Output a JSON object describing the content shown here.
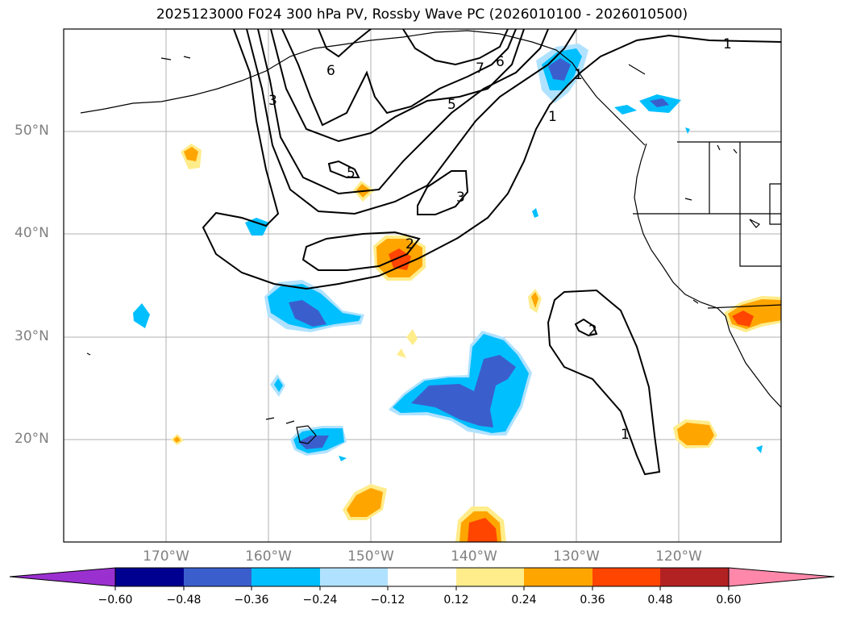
{
  "title": "2025123000 F024 300 hPa PV, Rossby Wave PC (2026010100 - 2026010500)",
  "lat_labels": [
    "50°N",
    "40°N",
    "30°N",
    "20°N"
  ],
  "lon_labels": [
    "170°W",
    "160°W",
    "150°W",
    "140°W",
    "130°W",
    "120°W"
  ],
  "contour_labels": [
    "1",
    "1",
    "1",
    "1",
    "2",
    "2",
    "3",
    "3",
    "5",
    "5",
    "6",
    "6",
    "7"
  ],
  "colorbar": {
    "tick_labels": [
      "−0.60",
      "−0.48",
      "−0.36",
      "−0.24",
      "−0.12",
      "0.12",
      "0.24",
      "0.36",
      "0.48",
      "0.60"
    ],
    "colors": [
      "#9b30d0",
      "#000090",
      "#3a5fcd",
      "#00bfff",
      "#b0e2ff",
      "#ffffff",
      "#ffec8b",
      "#ffa500",
      "#ff4500",
      "#b22222",
      "#ff88aa"
    ]
  },
  "fill_colors": {
    "neg_light": "#b0e2ff",
    "neg_mid": "#00bfff",
    "neg_strong": "#3a5fcd",
    "pos_light": "#ffec8b",
    "pos_mid": "#ffa500",
    "pos_strong": "#ff4500"
  }
}
